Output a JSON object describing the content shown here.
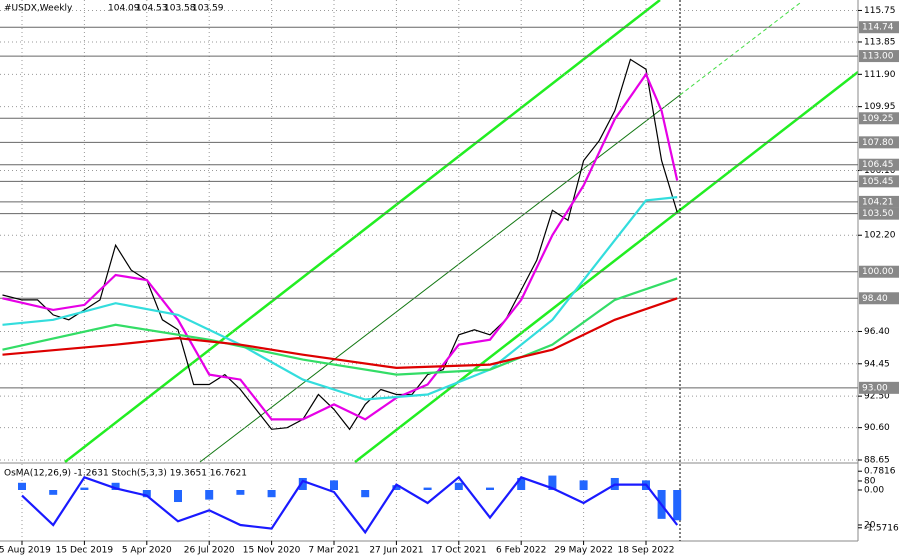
{
  "chart_data": [
    {
      "type": "line",
      "title": "#USDX,Weekly",
      "ohlc": [
        104.09,
        104.53,
        103.58,
        103.59
      ],
      "xlim": [
        -5.64,
        214.36
      ],
      "ylim": [
        88.53,
        116.38
      ],
      "xticks": [
        {
          "value": 0,
          "label": "25 Aug 2019"
        },
        {
          "value": 16,
          "label": "15 Dec 2019"
        },
        {
          "value": 32,
          "label": "5 Apr 2020"
        },
        {
          "value": 48,
          "label": "26 Jul 2020"
        },
        {
          "value": 64,
          "label": "15 Nov 2020"
        },
        {
          "value": 80,
          "label": "7 Mar 2021"
        },
        {
          "value": 96,
          "label": "27 Jun 2021"
        },
        {
          "value": 112,
          "label": "17 Oct 2021"
        },
        {
          "value": 128,
          "label": "6 Feb 2022"
        },
        {
          "value": 144,
          "label": "29 May 2022"
        },
        {
          "value": 160,
          "label": "18 Sep 2022"
        }
      ],
      "yticks": [
        115.75,
        113.85,
        {
          "value": 111.9,
          "label": "111.90"
        },
        109.95,
        {
          "value": 106.1,
          "label": "106.10"
        },
        {
          "value": 102.2,
          "label": "102.20"
        },
        {
          "value": 96.4,
          "label": "96.40"
        },
        94.45,
        {
          "value": 92.5,
          "label": "92.50"
        },
        {
          "value": 90.6,
          "label": "90.60"
        },
        88.65
      ],
      "levels": [
        114.74,
        {
          "value": 113,
          "label": "113.00"
        },
        109.25,
        {
          "value": 107.8,
          "label": "107.80"
        },
        106.45,
        105.45,
        104.21,
        {
          "value": 103.5,
          "label": "103.50"
        },
        {
          "value": 100,
          "label": "100.00"
        },
        {
          "value": 98.4,
          "label": "98.40"
        },
        {
          "value": 93,
          "label": "93.00"
        }
      ],
      "grid": true,
      "series": [
        {
          "color": "#000000",
          "x": [
            -5,
            0,
            4,
            8,
            12,
            16,
            20,
            24,
            28,
            32,
            36,
            40,
            44,
            48,
            52,
            56,
            60,
            64,
            68,
            72,
            76,
            80,
            84,
            88,
            92,
            96,
            100,
            104,
            108,
            112,
            116,
            120,
            124,
            128,
            132,
            136,
            140,
            144,
            148,
            152,
            156,
            160,
            164,
            168
          ],
          "values": [
            98.6,
            98.3,
            98.3,
            97.4,
            97.1,
            97.7,
            98.3,
            101.6,
            100.1,
            99.5,
            97.1,
            96.5,
            93.2,
            93.2,
            93.8,
            92.9,
            91.7,
            90.5,
            90.6,
            91.1,
            92.6,
            91.7,
            90.5,
            92.0,
            92.9,
            92.6,
            92.6,
            93.8,
            94.1,
            96.2,
            96.5,
            96.2,
            97.1,
            98.9,
            100.7,
            103.7,
            103.1,
            106.7,
            107.9,
            109.7,
            112.8,
            112.2,
            106.7,
            103.59
          ]
        },
        {
          "color": "#e600e6",
          "x": [
            -5,
            8,
            16,
            24,
            32,
            40,
            48,
            56,
            64,
            72,
            80,
            88,
            96,
            104,
            112,
            120,
            128,
            136,
            144,
            152,
            160,
            164,
            168
          ],
          "values": [
            98.4,
            97.7,
            98.0,
            99.8,
            99.5,
            97.1,
            93.8,
            93.5,
            91.1,
            91.1,
            92.0,
            91.1,
            92.4,
            93.2,
            95.6,
            95.9,
            98.3,
            102.2,
            105.2,
            109.2,
            111.9,
            109.7,
            105.5
          ]
        },
        {
          "color": "#33dddd",
          "x": [
            -5,
            8,
            24,
            40,
            56,
            72,
            88,
            104,
            120,
            136,
            152,
            160,
            168
          ],
          "values": [
            96.8,
            97.1,
            98.1,
            97.4,
            95.6,
            93.5,
            92.3,
            92.6,
            94.1,
            97.1,
            101.9,
            104.3,
            104.5
          ]
        },
        {
          "color": "#33dd66",
          "x": [
            -5,
            24,
            48,
            72,
            96,
            120,
            136,
            152,
            168
          ],
          "values": [
            95.3,
            96.8,
            95.9,
            94.7,
            93.8,
            94.1,
            95.6,
            98.3,
            99.6
          ]
        },
        {
          "color": "#dd0000",
          "x": [
            -5,
            24,
            40,
            56,
            72,
            96,
            120,
            136,
            152,
            168
          ],
          "values": [
            95.0,
            95.6,
            96.0,
            95.6,
            95.0,
            94.2,
            94.4,
            95.3,
            97.1,
            98.4
          ]
        }
      ]
    },
    {
      "type": "line",
      "title": "OsMA(12,26,9) -1.2631  Stoch(5,3,3) 19.3651 16.7621",
      "xlim": [
        -5.64,
        214.36
      ],
      "ylim": [
        -0.5,
        101.8
      ],
      "y2lim": [
        -2.08,
        1.04
      ],
      "yticks": [
        80,
        20
      ],
      "y2ticks": [
        0.7816,
        {
          "value": 0,
          "label": "0.00"
        },
        -1.5716
      ],
      "series": [
        {
          "color": "#2266ff",
          "type": "bar",
          "axis": "y2",
          "x": [
            0,
            8,
            16,
            24,
            32,
            40,
            48,
            56,
            64,
            72,
            80,
            88,
            96,
            104,
            112,
            120,
            128,
            136,
            144,
            152,
            160,
            164,
            168
          ],
          "values": [
            0.3,
            -0.2,
            0.1,
            0.3,
            -0.3,
            -0.5,
            -0.4,
            -0.2,
            -0.3,
            0.5,
            0.4,
            -0.3,
            0.2,
            0.1,
            0.3,
            0.1,
            0.5,
            0.6,
            0.4,
            0.5,
            0.4,
            -1.2,
            -1.26
          ]
        },
        {
          "color": "#1a1aff",
          "x": [
            0,
            8,
            16,
            24,
            32,
            40,
            48,
            56,
            64,
            72,
            80,
            88,
            96,
            104,
            112,
            120,
            128,
            136,
            144,
            152,
            160,
            168
          ],
          "values": [
            60,
            20,
            85,
            70,
            60,
            25,
            40,
            20,
            15,
            80,
            65,
            10,
            75,
            50,
            85,
            30,
            85,
            70,
            50,
            75,
            75,
            20
          ]
        }
      ]
    }
  ]
}
